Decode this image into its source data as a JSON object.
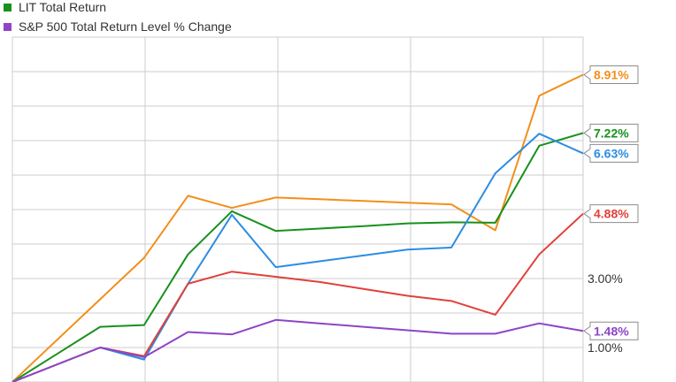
{
  "chart_data": {
    "type": "line",
    "x": [
      0,
      1,
      2,
      3,
      4,
      5,
      6,
      7,
      8,
      9,
      10,
      11,
      12,
      13
    ],
    "ylim": [
      0.0,
      10.0
    ],
    "yticks": [
      {
        "value": 1.0,
        "label": "1.00%"
      },
      {
        "value": 3.0,
        "label": "3.00%"
      }
    ],
    "grid": true,
    "legend_placement": "top-left",
    "series": [
      {
        "name": "",
        "color": "#f28f1c",
        "values": [
          0.0,
          1.2,
          2.4,
          3.6,
          5.4,
          5.05,
          5.35,
          5.3,
          5.25,
          5.2,
          5.15,
          4.4,
          8.3,
          8.91
        ],
        "end_label": "8.91%"
      },
      {
        "name": "LIT Total Return",
        "color": "#17911c",
        "values": [
          0.0,
          0.8,
          1.6,
          1.65,
          3.7,
          4.95,
          4.38,
          4.45,
          4.52,
          4.6,
          4.63,
          4.62,
          6.85,
          7.22
        ],
        "end_label": "7.22%"
      },
      {
        "name": "",
        "color": "#2b8de0",
        "values": [
          0.0,
          0.5,
          1.0,
          0.65,
          2.85,
          4.85,
          3.33,
          3.5,
          3.67,
          3.84,
          3.9,
          6.05,
          7.2,
          6.63
        ],
        "end_label": "6.63%"
      },
      {
        "name": "",
        "color": "#e0413a",
        "values": [
          0.0,
          0.5,
          1.0,
          0.75,
          2.85,
          3.2,
          3.05,
          2.9,
          2.7,
          2.5,
          2.35,
          1.95,
          3.7,
          4.88
        ],
        "end_label": "4.88%"
      },
      {
        "name": "S&P 500 Total Return Level % Change",
        "color": "#8e44c8",
        "values": [
          0.0,
          0.5,
          1.0,
          0.72,
          1.45,
          1.38,
          1.8,
          1.7,
          1.6,
          1.5,
          1.4,
          1.4,
          1.7,
          1.48
        ],
        "end_label": "1.48%"
      }
    ]
  },
  "legend": [
    {
      "label": "LIT Total Return",
      "color": "#17911c"
    },
    {
      "label": "S&P 500 Total Return Level % Change",
      "color": "#8e44c8"
    }
  ]
}
